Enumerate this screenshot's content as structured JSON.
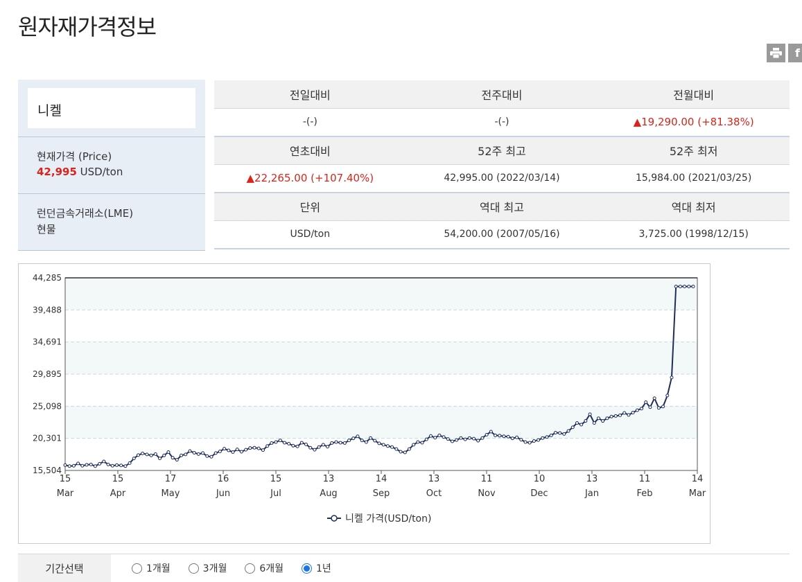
{
  "page": {
    "title": "원자재가격정보"
  },
  "share": {
    "print_icon": "print-icon",
    "facebook_icon": "facebook-icon",
    "facebook_glyph": "f"
  },
  "summary": {
    "commodity": "니켈",
    "price_label": "현재가격 (Price)",
    "price_value": "42,995",
    "price_unit": "USD/ton",
    "exchange": "런던금속거래소(LME)",
    "market_type": "현물"
  },
  "stats": {
    "rows": [
      {
        "headers": [
          "전일대비",
          "전주대비",
          "전월대비"
        ],
        "values": [
          "-(-)",
          "-(-)",
          "▲19,290.00 (+81.38%)"
        ],
        "up": [
          false,
          false,
          true
        ]
      },
      {
        "headers": [
          "연초대비",
          "52주 최고",
          "52주 최저"
        ],
        "values": [
          "▲22,265.00 (+107.40%)",
          "42,995.00 (2022/03/14)",
          "15,984.00 (2021/03/25)"
        ],
        "up": [
          true,
          false,
          false
        ]
      },
      {
        "headers": [
          "단위",
          "역대 최고",
          "역대 최저"
        ],
        "values": [
          "USD/ton",
          "54,200.00 (2007/05/16)",
          "3,725.00 (1998/12/15)"
        ],
        "up": [
          false,
          false,
          false
        ]
      }
    ],
    "up_color": "#d9241b"
  },
  "chart_data": {
    "type": "line",
    "y_ticks": [
      "44,285",
      "39,488",
      "34,691",
      "29,895",
      "25,098",
      "20,301",
      "15,504"
    ],
    "ylim": [
      15504,
      44285
    ],
    "x_ticks": [
      {
        "day": "15",
        "month": "Mar"
      },
      {
        "day": "15",
        "month": "Apr"
      },
      {
        "day": "17",
        "month": "May"
      },
      {
        "day": "16",
        "month": "Jun"
      },
      {
        "day": "15",
        "month": "Jul"
      },
      {
        "day": "13",
        "month": "Aug"
      },
      {
        "day": "14",
        "month": "Sep"
      },
      {
        "day": "13",
        "month": "Oct"
      },
      {
        "day": "11",
        "month": "Nov"
      },
      {
        "day": "10",
        "month": "Dec"
      },
      {
        "day": "13",
        "month": "Jan"
      },
      {
        "day": "11",
        "month": "Feb"
      },
      {
        "day": "14",
        "month": "Mar"
      }
    ],
    "series": [
      {
        "name": "니켈 가격(USD/ton)",
        "color": "#1e2d5a",
        "values": [
          16300,
          16150,
          16200,
          16550,
          16200,
          16350,
          16400,
          16150,
          16500,
          16850,
          16400,
          16200,
          16300,
          16250,
          16150,
          16600,
          17300,
          17800,
          18050,
          17900,
          17750,
          17950,
          17300,
          17750,
          18250,
          17400,
          17100,
          17750,
          17900,
          18400,
          18150,
          17950,
          18100,
          17650,
          17550,
          18100,
          18350,
          18750,
          18500,
          18250,
          18650,
          18300,
          18600,
          18850,
          18900,
          18800,
          18550,
          19150,
          19600,
          19750,
          20000,
          19650,
          19500,
          19200,
          19100,
          19650,
          19400,
          18900,
          18600,
          19000,
          19350,
          19050,
          19600,
          19750,
          19650,
          19600,
          20000,
          20300,
          20600,
          20000,
          19750,
          20350,
          19950,
          19550,
          19350,
          19150,
          19000,
          18700,
          18300,
          18200,
          18700,
          19350,
          19750,
          19650,
          20150,
          20650,
          20400,
          20750,
          20500,
          20200,
          19850,
          20050,
          20350,
          20150,
          20350,
          20250,
          19950,
          20350,
          20850,
          21300,
          20750,
          20700,
          20600,
          20550,
          20300,
          20450,
          20100,
          19750,
          19650,
          19900,
          20050,
          20350,
          20500,
          20750,
          21150,
          21100,
          20950,
          21400,
          21950,
          22600,
          22350,
          22900,
          23900,
          22600,
          23300,
          22900,
          23300,
          23550,
          23650,
          23750,
          24100,
          23800,
          24150,
          24500,
          24750,
          25700,
          24950,
          26300,
          24850,
          25050,
          26700,
          29400,
          42995,
          42995,
          42995,
          42995,
          42995
        ]
      }
    ],
    "legend": "bottom-center",
    "grid": true
  },
  "period": {
    "label": "기간선택",
    "options": [
      {
        "label": "1개월",
        "checked": false
      },
      {
        "label": "3개월",
        "checked": false
      },
      {
        "label": "6개월",
        "checked": false
      },
      {
        "label": "1년",
        "checked": true
      }
    ]
  }
}
